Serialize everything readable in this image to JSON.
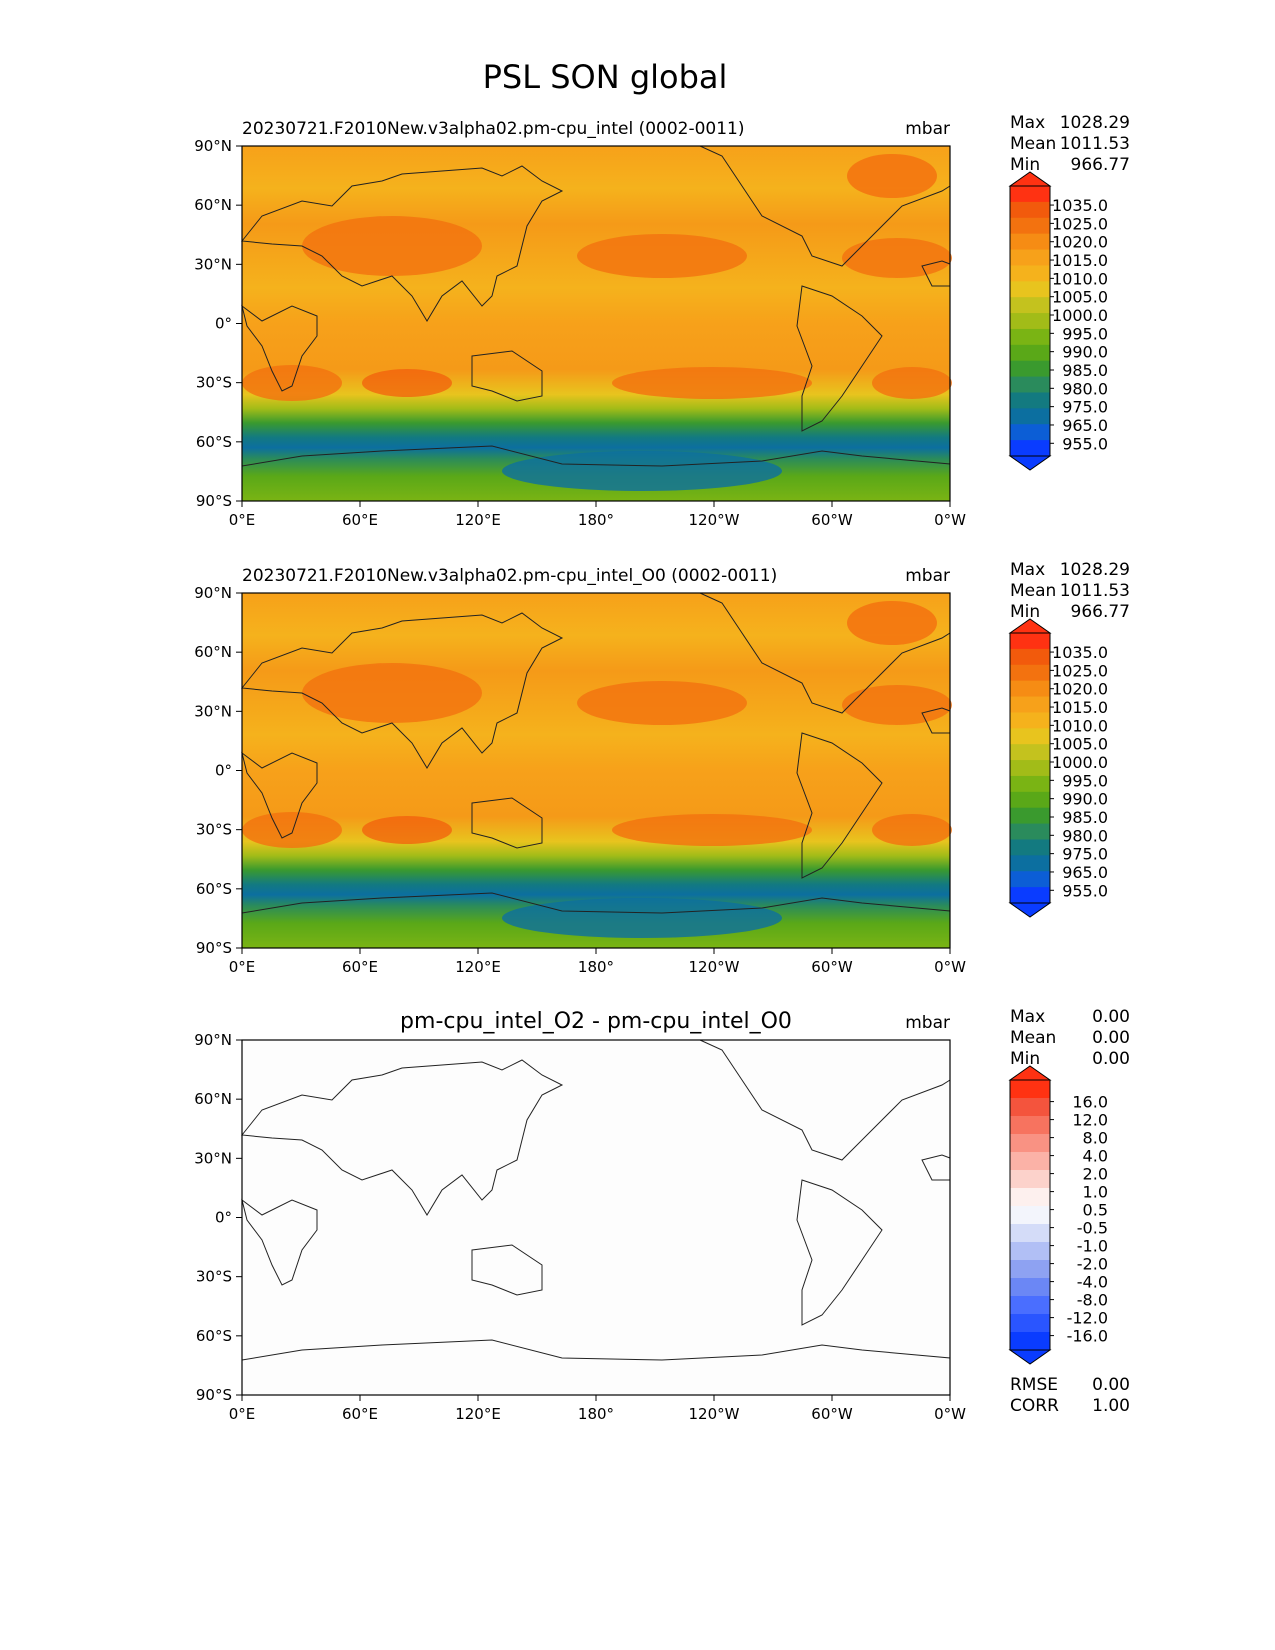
{
  "figure_title": "PSL SON global",
  "colors": {
    "mean_levels": [
      "#0a3cff",
      "#0c5ed6",
      "#0c6fa0",
      "#137a80",
      "#2a8b5c",
      "#3a9a2e",
      "#5aa818",
      "#7ab414",
      "#a2bc18",
      "#c4c21e",
      "#e8c41e",
      "#f5b21c",
      "#f7a11a",
      "#f68c14",
      "#f3720f",
      "#f25a0c",
      "#ff3212"
    ],
    "diff_levels": [
      "#0a3cff",
      "#2a55ff",
      "#4a6eff",
      "#6b87f5",
      "#8ea2f2",
      "#b1bff5",
      "#d4dcf8",
      "#f3f5fc",
      "#fdf0ee",
      "#fcd2cb",
      "#fbb2a7",
      "#f99283",
      "#f7735f",
      "#f4543d",
      "#ff3212"
    ],
    "land_outline": "#222222"
  },
  "chart_data": [
    {
      "type": "heatmap",
      "title": "20230721.F2010New.v3alpha02.pm-cpu_intel (0002-0011)",
      "units": "mbar",
      "stats": {
        "labels": [
          "Max",
          "Mean",
          "Min"
        ],
        "values": [
          "1028.29",
          "1011.53",
          "966.77"
        ]
      },
      "colorbar_levels": [
        "1035.0",
        "1025.0",
        "1020.0",
        "1015.0",
        "1010.0",
        "1005.0",
        "1000.0",
        "995.0",
        "990.0",
        "985.0",
        "980.0",
        "975.0",
        "965.0",
        "955.0"
      ],
      "xticks": [
        "0°E",
        "60°E",
        "120°E",
        "180°",
        "120°W",
        "60°W",
        "0°W"
      ],
      "yticks": [
        "90°N",
        "60°N",
        "30°N",
        "0°",
        "30°S",
        "60°S",
        "90°S"
      ],
      "xlim": [
        0,
        360
      ],
      "ylim": [
        -90,
        90
      ]
    },
    {
      "type": "heatmap",
      "title": "20230721.F2010New.v3alpha02.pm-cpu_intel_O0 (0002-0011)",
      "units": "mbar",
      "stats": {
        "labels": [
          "Max",
          "Mean",
          "Min"
        ],
        "values": [
          "1028.29",
          "1011.53",
          "966.77"
        ]
      },
      "colorbar_levels": [
        "1035.0",
        "1025.0",
        "1020.0",
        "1015.0",
        "1010.0",
        "1005.0",
        "1000.0",
        "995.0",
        "990.0",
        "985.0",
        "980.0",
        "975.0",
        "965.0",
        "955.0"
      ],
      "xticks": [
        "0°E",
        "60°E",
        "120°E",
        "180°",
        "120°W",
        "60°W",
        "0°W"
      ],
      "yticks": [
        "90°N",
        "60°N",
        "30°N",
        "0°",
        "30°S",
        "60°S",
        "90°S"
      ],
      "xlim": [
        0,
        360
      ],
      "ylim": [
        -90,
        90
      ]
    },
    {
      "type": "heatmap",
      "title": "pm-cpu_intel_O2 - pm-cpu_intel_O0",
      "units": "mbar",
      "stats": {
        "labels": [
          "Max",
          "Mean",
          "Min"
        ],
        "values": [
          "0.00",
          "0.00",
          "0.00"
        ]
      },
      "colorbar_levels": [
        "16.0",
        "12.0",
        "8.0",
        "4.0",
        "2.0",
        "1.0",
        "0.5",
        "-0.5",
        "-1.0",
        "-2.0",
        "-4.0",
        "-8.0",
        "-12.0",
        "-16.0"
      ],
      "xticks": [
        "0°E",
        "60°E",
        "120°E",
        "180°",
        "120°W",
        "60°W",
        "0°W"
      ],
      "yticks": [
        "90°N",
        "60°N",
        "30°N",
        "0°",
        "30°S",
        "60°S",
        "90°S"
      ],
      "xlim": [
        0,
        360
      ],
      "ylim": [
        -90,
        90
      ],
      "metrics": {
        "labels": [
          "RMSE",
          "CORR"
        ],
        "values": [
          "0.00",
          "1.00"
        ]
      }
    }
  ]
}
